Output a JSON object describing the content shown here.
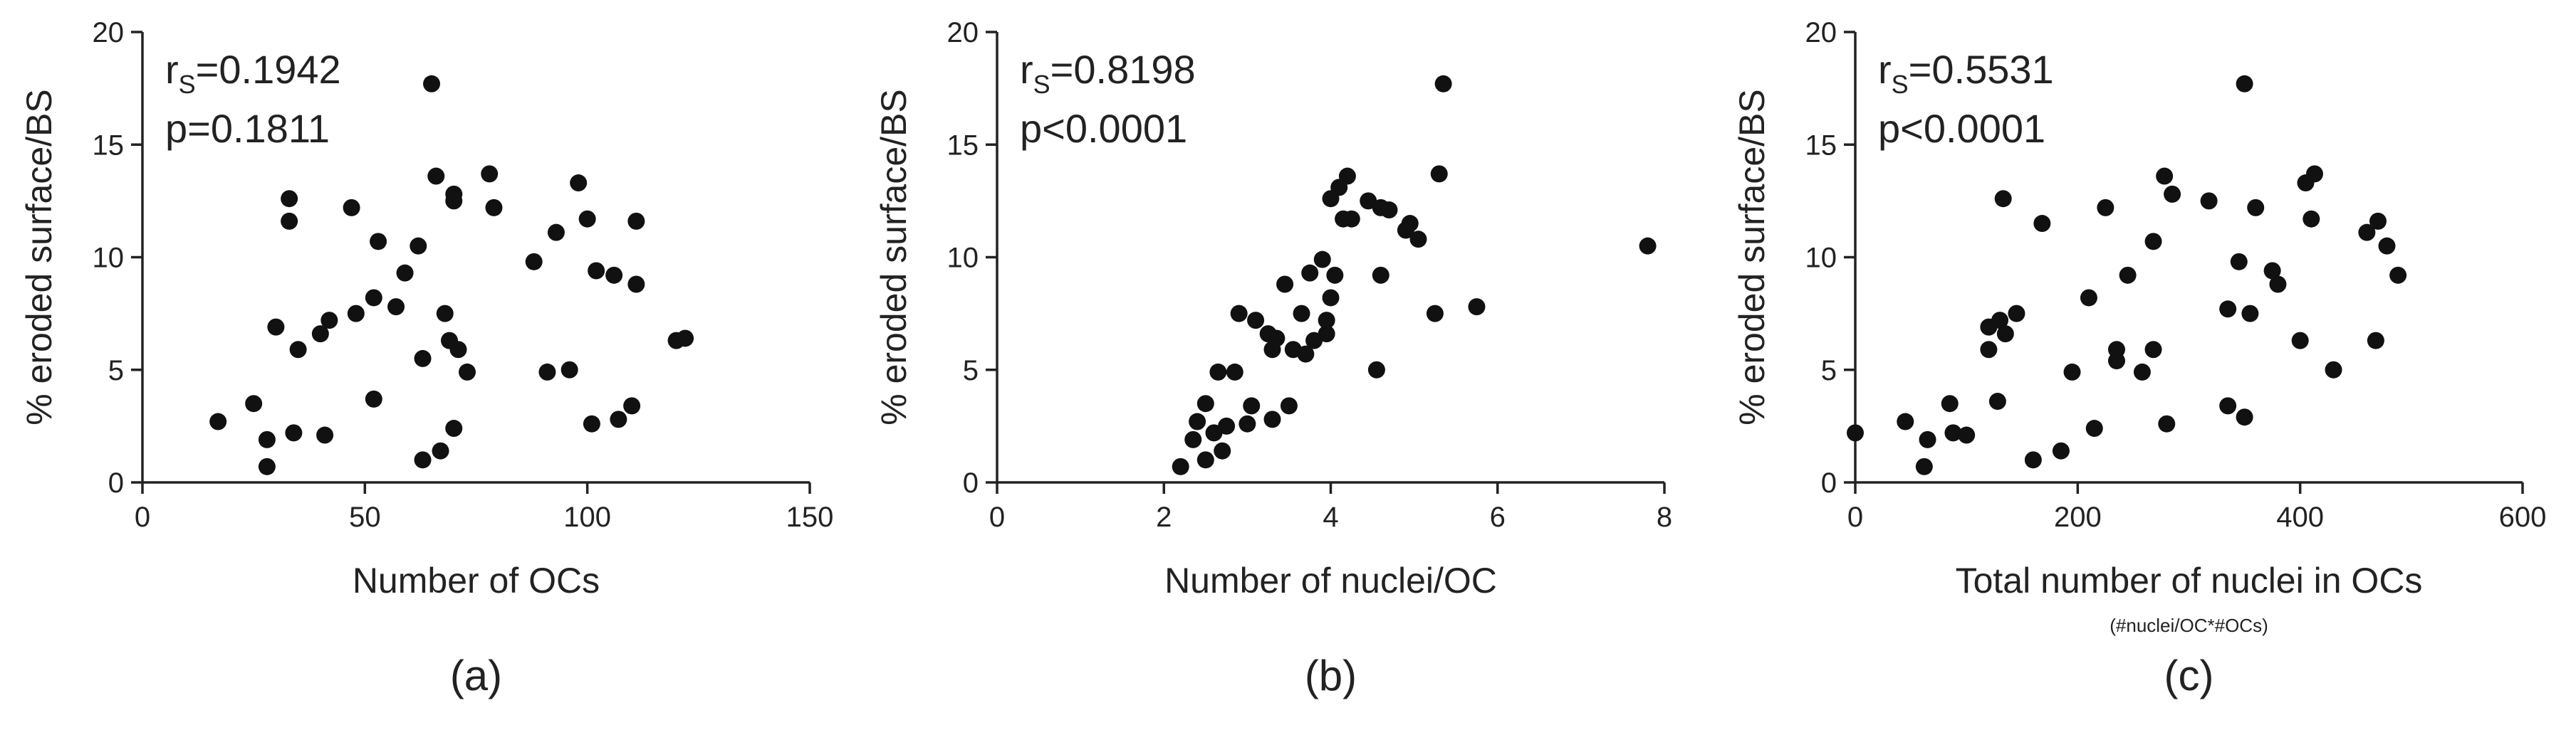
{
  "chart_data": [
    {
      "type": "scatter",
      "panel_label": "(a)",
      "xlabel": "Number of OCs",
      "xlabel_sub": "",
      "ylabel": "% eroded surface/BS",
      "xlim": [
        0,
        150
      ],
      "ylim": [
        0,
        20
      ],
      "xticks": [
        "0",
        "50",
        "100",
        "150"
      ],
      "yticks": [
        "0",
        "5",
        "10",
        "15",
        "20"
      ],
      "stat_r_prefix": "r",
      "stat_r_sub": "S",
      "stat_r_value": "=0.1942",
      "stat_p": "p=0.1811",
      "points": [
        [
          17,
          2.7
        ],
        [
          25,
          3.5
        ],
        [
          28,
          1.9
        ],
        [
          28,
          0.7
        ],
        [
          30,
          6.9
        ],
        [
          33,
          12.6
        ],
        [
          33,
          11.6
        ],
        [
          34,
          2.2
        ],
        [
          35,
          5.9
        ],
        [
          40,
          6.6
        ],
        [
          41,
          2.1
        ],
        [
          42,
          7.2
        ],
        [
          47,
          12.2
        ],
        [
          48,
          7.5
        ],
        [
          52,
          3.7
        ],
        [
          52,
          8.2
        ],
        [
          53,
          10.7
        ],
        [
          57,
          7.8
        ],
        [
          59,
          9.3
        ],
        [
          62,
          10.5
        ],
        [
          63,
          5.5
        ],
        [
          63,
          1.0
        ],
        [
          65,
          17.7
        ],
        [
          66,
          13.6
        ],
        [
          67,
          1.4
        ],
        [
          68,
          7.5
        ],
        [
          69,
          6.3
        ],
        [
          70,
          12.8
        ],
        [
          70,
          12.5
        ],
        [
          70,
          2.4
        ],
        [
          71,
          5.9
        ],
        [
          73,
          4.9
        ],
        [
          78,
          13.7
        ],
        [
          79,
          12.2
        ],
        [
          88,
          9.8
        ],
        [
          91,
          4.9
        ],
        [
          93,
          11.1
        ],
        [
          96,
          5.0
        ],
        [
          98,
          13.3
        ],
        [
          100,
          11.7
        ],
        [
          101,
          2.6
        ],
        [
          102,
          9.4
        ],
        [
          106,
          9.2
        ],
        [
          107,
          2.8
        ],
        [
          110,
          3.4
        ],
        [
          111,
          11.6
        ],
        [
          111,
          8.8
        ],
        [
          120,
          6.3
        ],
        [
          122,
          6.4
        ]
      ]
    },
    {
      "type": "scatter",
      "panel_label": "(b)",
      "xlabel": "Number of nuclei/OC",
      "xlabel_sub": "",
      "ylabel": "% eroded surface/BS",
      "xlim": [
        0,
        8
      ],
      "ylim": [
        0,
        20
      ],
      "xticks": [
        "0",
        "2",
        "4",
        "6",
        "8"
      ],
      "yticks": [
        "0",
        "5",
        "10",
        "15",
        "20"
      ],
      "stat_r_prefix": "r",
      "stat_r_sub": "S",
      "stat_r_value": "=0.8198",
      "stat_p": "p<0.0001",
      "points": [
        [
          2.2,
          0.7
        ],
        [
          2.35,
          1.9
        ],
        [
          2.4,
          2.7
        ],
        [
          2.5,
          3.5
        ],
        [
          2.5,
          1.0
        ],
        [
          2.6,
          2.2
        ],
        [
          2.65,
          4.9
        ],
        [
          2.7,
          1.4
        ],
        [
          2.75,
          2.5
        ],
        [
          2.85,
          4.9
        ],
        [
          2.9,
          7.5
        ],
        [
          3.0,
          2.6
        ],
        [
          3.05,
          3.4
        ],
        [
          3.1,
          7.2
        ],
        [
          3.25,
          6.6
        ],
        [
          3.3,
          5.9
        ],
        [
          3.3,
          2.8
        ],
        [
          3.35,
          6.4
        ],
        [
          3.45,
          8.8
        ],
        [
          3.5,
          3.4
        ],
        [
          3.55,
          5.9
        ],
        [
          3.65,
          7.5
        ],
        [
          3.7,
          5.7
        ],
        [
          3.75,
          9.3
        ],
        [
          3.8,
          6.3
        ],
        [
          3.9,
          9.9
        ],
        [
          3.95,
          6.6
        ],
        [
          3.95,
          7.2
        ],
        [
          4.0,
          8.2
        ],
        [
          4.0,
          12.6
        ],
        [
          4.05,
          9.2
        ],
        [
          4.1,
          13.1
        ],
        [
          4.15,
          11.7
        ],
        [
          4.2,
          13.6
        ],
        [
          4.25,
          11.7
        ],
        [
          4.45,
          12.5
        ],
        [
          4.55,
          5.0
        ],
        [
          4.6,
          12.2
        ],
        [
          4.6,
          9.2
        ],
        [
          4.7,
          12.1
        ],
        [
          4.9,
          11.2
        ],
        [
          4.95,
          11.5
        ],
        [
          5.05,
          10.8
        ],
        [
          5.25,
          7.5
        ],
        [
          5.3,
          13.7
        ],
        [
          5.35,
          17.7
        ],
        [
          5.75,
          7.8
        ],
        [
          7.8,
          10.5
        ]
      ]
    },
    {
      "type": "scatter",
      "panel_label": "(c)",
      "xlabel": "Total number of nuclei in OCs",
      "xlabel_sub": "(#nuclei/OC*#OCs)",
      "ylabel": "% eroded surface/BS",
      "xlim": [
        0,
        600
      ],
      "ylim": [
        0,
        20
      ],
      "xticks": [
        "0",
        "200",
        "400",
        "600"
      ],
      "yticks": [
        "0",
        "5",
        "10",
        "15",
        "20"
      ],
      "stat_r_prefix": "r",
      "stat_r_sub": "S",
      "stat_r_value": "=0.5531",
      "stat_p": "p<0.0001",
      "points": [
        [
          0,
          2.2
        ],
        [
          45,
          2.7
        ],
        [
          62,
          0.7
        ],
        [
          65,
          1.9
        ],
        [
          85,
          3.5
        ],
        [
          88,
          2.2
        ],
        [
          100,
          2.1
        ],
        [
          120,
          5.9
        ],
        [
          120,
          6.9
        ],
        [
          128,
          3.6
        ],
        [
          130,
          7.2
        ],
        [
          133,
          12.6
        ],
        [
          135,
          6.6
        ],
        [
          145,
          7.5
        ],
        [
          160,
          1.0
        ],
        [
          168,
          11.5
        ],
        [
          185,
          1.4
        ],
        [
          195,
          4.9
        ],
        [
          210,
          8.2
        ],
        [
          215,
          2.4
        ],
        [
          225,
          12.2
        ],
        [
          235,
          5.9
        ],
        [
          235,
          5.4
        ],
        [
          245,
          9.2
        ],
        [
          258,
          4.9
        ],
        [
          268,
          5.9
        ],
        [
          268,
          10.7
        ],
        [
          278,
          13.6
        ],
        [
          280,
          2.6
        ],
        [
          285,
          12.8
        ],
        [
          318,
          12.5
        ],
        [
          335,
          7.7
        ],
        [
          335,
          3.4
        ],
        [
          345,
          9.8
        ],
        [
          350,
          17.7
        ],
        [
          350,
          2.9
        ],
        [
          355,
          7.5
        ],
        [
          360,
          12.2
        ],
        [
          375,
          9.4
        ],
        [
          380,
          8.8
        ],
        [
          400,
          6.3
        ],
        [
          405,
          13.3
        ],
        [
          410,
          11.7
        ],
        [
          413,
          13.7
        ],
        [
          430,
          5.0
        ],
        [
          460,
          11.1
        ],
        [
          468,
          6.3
        ],
        [
          470,
          11.6
        ],
        [
          478,
          10.5
        ],
        [
          488,
          9.2
        ]
      ]
    }
  ]
}
